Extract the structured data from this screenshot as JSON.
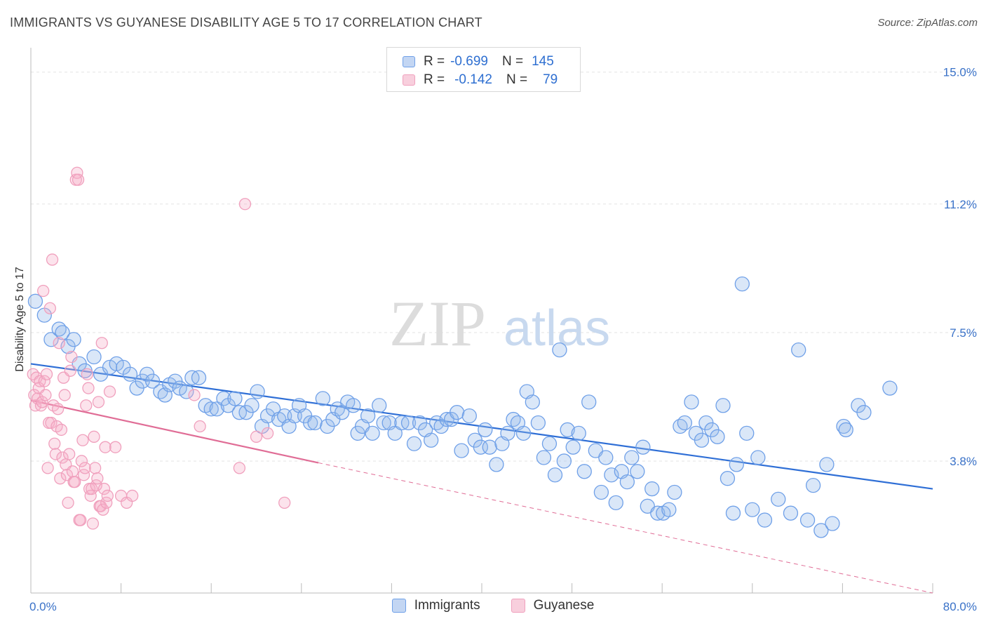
{
  "title": "IMMIGRANTS VS GUYANESE DISABILITY AGE 5 TO 17 CORRELATION CHART",
  "source": "Source: ZipAtlas.com",
  "watermark": {
    "zip": "ZIP",
    "atlas": "atlas"
  },
  "legend": {
    "rows": [
      {
        "r_label": "R =",
        "r_value": "-0.699",
        "n_label": "N =",
        "n_value": "145",
        "color": "#6fa0e8"
      },
      {
        "r_label": "R =",
        "r_value": "-0.142",
        "n_label": "N =",
        "n_value": "79",
        "color": "#f0a0bd"
      }
    ]
  },
  "bottom_legend": [
    {
      "label": "Immigrants",
      "color": "#6fa0e8"
    },
    {
      "label": "Guyanese",
      "color": "#f0a0bd"
    }
  ],
  "chart_data": {
    "type": "scatter",
    "title": "IMMIGRANTS VS GUYANESE DISABILITY AGE 5 TO 17 CORRELATION CHART",
    "ylabel": "Disability Age 5 to 17",
    "xlabel": "",
    "xlim": [
      0,
      80
    ],
    "ylim": [
      0,
      15.5
    ],
    "x_tick_labels": [
      "0.0%",
      "80.0%"
    ],
    "y_ticks": [
      3.8,
      7.5,
      11.2,
      15.0
    ],
    "y_tick_labels": [
      "3.8%",
      "7.5%",
      "11.2%",
      "15.0%"
    ],
    "grid": true,
    "legend_position": "top-center",
    "series": [
      {
        "name": "Immigrants",
        "color": "#6fa0e8",
        "line_color": "#2f6fd6",
        "trend": {
          "x": [
            0,
            80
          ],
          "y": [
            6.6,
            3.0
          ]
        },
        "points": [
          [
            0.4,
            8.4
          ],
          [
            1.2,
            8.0
          ],
          [
            1.8,
            7.3
          ],
          [
            2.5,
            7.6
          ],
          [
            2.8,
            7.5
          ],
          [
            3.3,
            7.1
          ],
          [
            3.8,
            7.3
          ],
          [
            4.3,
            6.6
          ],
          [
            4.8,
            6.4
          ],
          [
            5.6,
            6.8
          ],
          [
            6.2,
            6.3
          ],
          [
            7.0,
            6.5
          ],
          [
            7.6,
            6.6
          ],
          [
            8.2,
            6.5
          ],
          [
            8.8,
            6.3
          ],
          [
            9.4,
            5.9
          ],
          [
            9.9,
            6.1
          ],
          [
            10.3,
            6.3
          ],
          [
            10.8,
            6.1
          ],
          [
            11.5,
            5.8
          ],
          [
            11.9,
            5.7
          ],
          [
            12.3,
            6.0
          ],
          [
            12.8,
            6.1
          ],
          [
            13.2,
            5.9
          ],
          [
            13.8,
            5.8
          ],
          [
            14.3,
            6.2
          ],
          [
            14.9,
            6.2
          ],
          [
            15.5,
            5.4
          ],
          [
            16.0,
            5.3
          ],
          [
            16.5,
            5.3
          ],
          [
            17.1,
            5.6
          ],
          [
            17.5,
            5.4
          ],
          [
            18.1,
            5.6
          ],
          [
            18.5,
            5.2
          ],
          [
            19.1,
            5.2
          ],
          [
            19.6,
            5.4
          ],
          [
            20.1,
            5.8
          ],
          [
            20.5,
            4.8
          ],
          [
            21.0,
            5.1
          ],
          [
            21.5,
            5.3
          ],
          [
            22.0,
            5.0
          ],
          [
            22.5,
            5.1
          ],
          [
            22.9,
            4.8
          ],
          [
            23.4,
            5.1
          ],
          [
            23.8,
            5.4
          ],
          [
            24.3,
            5.1
          ],
          [
            24.8,
            4.9
          ],
          [
            25.2,
            4.9
          ],
          [
            25.9,
            5.6
          ],
          [
            26.3,
            4.8
          ],
          [
            26.8,
            5.0
          ],
          [
            27.2,
            5.3
          ],
          [
            27.6,
            5.2
          ],
          [
            28.1,
            5.5
          ],
          [
            28.6,
            5.4
          ],
          [
            29.0,
            4.6
          ],
          [
            29.4,
            4.8
          ],
          [
            29.9,
            5.1
          ],
          [
            30.3,
            4.6
          ],
          [
            30.9,
            5.4
          ],
          [
            31.3,
            4.9
          ],
          [
            31.8,
            4.9
          ],
          [
            32.3,
            4.6
          ],
          [
            32.9,
            4.9
          ],
          [
            33.5,
            4.9
          ],
          [
            34.0,
            4.3
          ],
          [
            34.5,
            4.9
          ],
          [
            35.0,
            4.7
          ],
          [
            35.5,
            4.4
          ],
          [
            36.0,
            4.9
          ],
          [
            36.4,
            4.8
          ],
          [
            36.9,
            5.0
          ],
          [
            37.3,
            5.0
          ],
          [
            37.8,
            5.2
          ],
          [
            38.2,
            4.1
          ],
          [
            38.9,
            5.1
          ],
          [
            39.4,
            4.4
          ],
          [
            39.9,
            4.2
          ],
          [
            40.3,
            4.7
          ],
          [
            40.7,
            4.2
          ],
          [
            41.3,
            3.7
          ],
          [
            41.8,
            4.3
          ],
          [
            42.3,
            4.6
          ],
          [
            42.8,
            5.0
          ],
          [
            43.2,
            4.9
          ],
          [
            43.7,
            4.6
          ],
          [
            44.0,
            5.8
          ],
          [
            44.5,
            5.5
          ],
          [
            45.0,
            4.9
          ],
          [
            45.5,
            3.9
          ],
          [
            46.0,
            4.3
          ],
          [
            46.5,
            3.4
          ],
          [
            46.9,
            7.0
          ],
          [
            47.3,
            3.8
          ],
          [
            47.6,
            4.7
          ],
          [
            48.1,
            4.2
          ],
          [
            48.6,
            4.6
          ],
          [
            49.1,
            3.5
          ],
          [
            49.5,
            5.5
          ],
          [
            50.1,
            4.1
          ],
          [
            50.6,
            2.9
          ],
          [
            51.0,
            3.9
          ],
          [
            51.5,
            3.4
          ],
          [
            51.9,
            2.6
          ],
          [
            52.4,
            3.5
          ],
          [
            52.9,
            3.2
          ],
          [
            53.3,
            3.9
          ],
          [
            53.8,
            3.5
          ],
          [
            54.3,
            4.2
          ],
          [
            54.7,
            2.5
          ],
          [
            55.1,
            3.0
          ],
          [
            55.6,
            2.3
          ],
          [
            56.1,
            2.3
          ],
          [
            56.6,
            2.4
          ],
          [
            57.1,
            2.9
          ],
          [
            57.6,
            4.8
          ],
          [
            58.0,
            4.9
          ],
          [
            58.6,
            5.5
          ],
          [
            59.0,
            4.6
          ],
          [
            59.5,
            4.4
          ],
          [
            59.9,
            4.9
          ],
          [
            60.4,
            4.7
          ],
          [
            60.9,
            4.5
          ],
          [
            61.4,
            5.4
          ],
          [
            61.8,
            3.3
          ],
          [
            62.3,
            2.3
          ],
          [
            62.6,
            3.7
          ],
          [
            63.1,
            8.9
          ],
          [
            63.5,
            4.6
          ],
          [
            64.0,
            2.4
          ],
          [
            64.5,
            3.9
          ],
          [
            65.1,
            2.1
          ],
          [
            66.3,
            2.7
          ],
          [
            67.4,
            2.3
          ],
          [
            68.1,
            7.0
          ],
          [
            68.9,
            2.1
          ],
          [
            69.4,
            3.1
          ],
          [
            70.1,
            1.8
          ],
          [
            70.6,
            3.7
          ],
          [
            71.1,
            2.0
          ],
          [
            72.1,
            4.8
          ],
          [
            72.3,
            4.7
          ],
          [
            73.4,
            5.4
          ],
          [
            73.9,
            5.2
          ],
          [
            76.2,
            5.9
          ]
        ]
      },
      {
        "name": "Guyanese",
        "color": "#f0a0bd",
        "line_color": "#e06d96",
        "trend": {
          "x": [
            0,
            25.5
          ],
          "y": [
            5.55,
            3.75
          ]
        },
        "trend_dashed": {
          "x": [
            25.5,
            80
          ],
          "y": [
            3.75,
            0
          ]
        },
        "points": [
          [
            0.2,
            6.3
          ],
          [
            0.3,
            5.7
          ],
          [
            0.4,
            5.4
          ],
          [
            0.5,
            6.2
          ],
          [
            0.6,
            5.6
          ],
          [
            0.7,
            5.9
          ],
          [
            0.8,
            6.1
          ],
          [
            0.9,
            5.4
          ],
          [
            1.0,
            5.5
          ],
          [
            1.1,
            8.7
          ],
          [
            1.2,
            6.1
          ],
          [
            1.3,
            5.7
          ],
          [
            1.4,
            6.3
          ],
          [
            1.5,
            3.6
          ],
          [
            1.6,
            4.9
          ],
          [
            1.7,
            8.2
          ],
          [
            1.8,
            4.9
          ],
          [
            1.9,
            9.6
          ],
          [
            2.0,
            5.4
          ],
          [
            2.1,
            4.3
          ],
          [
            2.2,
            4.0
          ],
          [
            2.3,
            4.8
          ],
          [
            2.4,
            5.3
          ],
          [
            2.5,
            7.2
          ],
          [
            2.6,
            3.3
          ],
          [
            2.7,
            4.7
          ],
          [
            2.8,
            3.9
          ],
          [
            2.9,
            6.2
          ],
          [
            3.0,
            5.7
          ],
          [
            3.1,
            3.7
          ],
          [
            3.2,
            3.4
          ],
          [
            3.3,
            2.6
          ],
          [
            3.4,
            4.0
          ],
          [
            3.5,
            6.4
          ],
          [
            3.6,
            6.8
          ],
          [
            3.7,
            3.5
          ],
          [
            3.8,
            3.2
          ],
          [
            3.9,
            3.2
          ],
          [
            4.0,
            11.9
          ],
          [
            4.1,
            12.1
          ],
          [
            4.2,
            11.9
          ],
          [
            4.3,
            2.1
          ],
          [
            4.4,
            2.1
          ],
          [
            4.5,
            3.8
          ],
          [
            4.6,
            4.4
          ],
          [
            4.7,
            3.4
          ],
          [
            4.8,
            3.6
          ],
          [
            4.9,
            5.4
          ],
          [
            5.0,
            6.3
          ],
          [
            5.1,
            5.9
          ],
          [
            5.2,
            3.0
          ],
          [
            5.3,
            2.8
          ],
          [
            5.4,
            3.0
          ],
          [
            5.5,
            2.0
          ],
          [
            5.6,
            4.5
          ],
          [
            5.7,
            3.6
          ],
          [
            5.8,
            3.1
          ],
          [
            5.9,
            3.3
          ],
          [
            6.0,
            5.5
          ],
          [
            6.1,
            2.5
          ],
          [
            6.2,
            2.5
          ],
          [
            6.3,
            7.2
          ],
          [
            6.4,
            2.4
          ],
          [
            6.5,
            3.0
          ],
          [
            6.6,
            4.2
          ],
          [
            6.7,
            2.6
          ],
          [
            6.8,
            2.8
          ],
          [
            7.0,
            5.8
          ],
          [
            7.5,
            4.2
          ],
          [
            8.0,
            2.8
          ],
          [
            8.5,
            2.6
          ],
          [
            9.0,
            2.8
          ],
          [
            14.5,
            5.7
          ],
          [
            15.0,
            4.8
          ],
          [
            18.5,
            3.6
          ],
          [
            19.0,
            11.2
          ],
          [
            20.0,
            4.5
          ],
          [
            21.0,
            4.6
          ],
          [
            22.5,
            2.6
          ]
        ]
      }
    ]
  }
}
